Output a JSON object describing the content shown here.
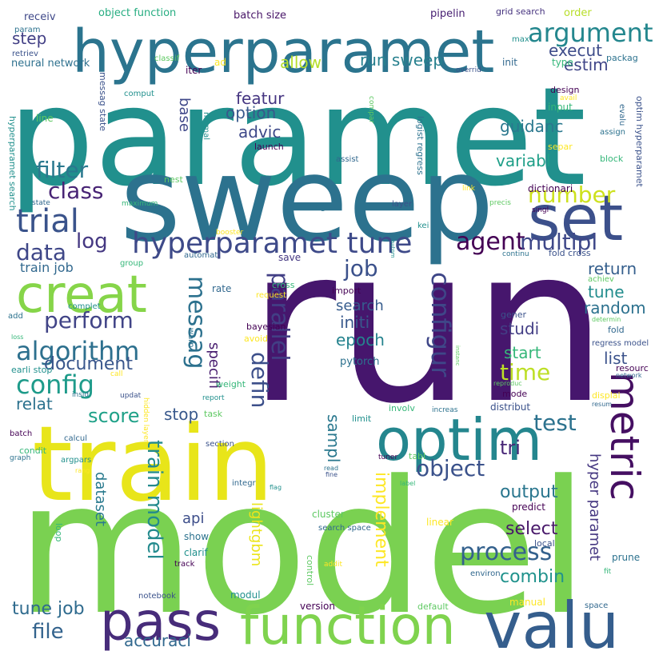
{
  "wordcloud": {
    "words": [
      {
        "text": "run",
        "color": "#46166d"
      },
      {
        "text": "model",
        "color": "#7ad151"
      },
      {
        "text": "paramet",
        "color": "#21908d"
      },
      {
        "text": "sweep",
        "color": "#2c728e"
      },
      {
        "text": "train",
        "color": "#e8e51a"
      },
      {
        "text": "hyperparamet",
        "color": "#2b748e"
      },
      {
        "text": "valu",
        "color": "#355e8d"
      },
      {
        "text": "function",
        "color": "#7fd34e"
      },
      {
        "text": "pass",
        "color": "#472c7a"
      },
      {
        "text": "optim",
        "color": "#24868e"
      },
      {
        "text": "set",
        "color": "#3c508b"
      },
      {
        "text": "creat",
        "color": "#86d549"
      },
      {
        "text": "metric",
        "color": "#450f62"
      },
      {
        "text": "trial",
        "color": "#3a538b"
      },
      {
        "text": "hyperparamet tune",
        "color": "#3e4a89"
      },
      {
        "text": "argument",
        "color": "#24878e"
      },
      {
        "text": "algorithm",
        "color": "#2d708e"
      },
      {
        "text": "messag",
        "color": "#2c718e"
      },
      {
        "text": "config",
        "color": "#1e9b8a"
      },
      {
        "text": "configur",
        "color": "#3f4788"
      },
      {
        "text": "parallel",
        "color": "#423f85"
      },
      {
        "text": "agent",
        "color": "#440154"
      },
      {
        "text": "multipl",
        "color": "#3f4889"
      },
      {
        "text": "data",
        "color": "#3f4788"
      },
      {
        "text": "filter",
        "color": "#2a788e"
      },
      {
        "text": "class",
        "color": "#482475"
      },
      {
        "text": "perform",
        "color": "#414487"
      },
      {
        "text": "process",
        "color": "#34618d"
      },
      {
        "text": "job",
        "color": "#3b518b"
      },
      {
        "text": "number",
        "color": "#cde11d"
      },
      {
        "text": "log",
        "color": "#453882"
      },
      {
        "text": "test",
        "color": "#2c728e"
      },
      {
        "text": "time",
        "color": "#bddf26"
      },
      {
        "text": "defin",
        "color": "#3c4f8a"
      },
      {
        "text": "score",
        "color": "#1fa188"
      },
      {
        "text": "train model",
        "color": "#238a8d"
      },
      {
        "text": "object",
        "color": "#3b528b"
      },
      {
        "text": "file",
        "color": "#33638d"
      },
      {
        "text": "tune job",
        "color": "#2f6b8e"
      },
      {
        "text": "accuraci",
        "color": "#31688e"
      },
      {
        "text": "implement",
        "color": "#fde725"
      },
      {
        "text": "tri",
        "color": "#482677"
      },
      {
        "text": "output",
        "color": "#2a768e"
      },
      {
        "text": "select",
        "color": "#48186a"
      },
      {
        "text": "combin",
        "color": "#20928c"
      },
      {
        "text": "document",
        "color": "#39568c"
      },
      {
        "text": "relat",
        "color": "#2c728e"
      },
      {
        "text": "stop",
        "color": "#38588c"
      },
      {
        "text": "execut",
        "color": "#3e4c8a"
      },
      {
        "text": "allow",
        "color": "#b5de2b"
      },
      {
        "text": "run sweep",
        "color": "#27808e"
      },
      {
        "text": "step",
        "color": "#423f85"
      },
      {
        "text": "estim",
        "color": "#404688"
      },
      {
        "text": "featur",
        "color": "#453581"
      },
      {
        "text": "option",
        "color": "#38588c"
      },
      {
        "text": "advic",
        "color": "#3e4989"
      },
      {
        "text": "guidanc",
        "color": "#2a788e"
      },
      {
        "text": "variabl",
        "color": "#1f9f88"
      },
      {
        "text": "random",
        "color": "#2c718e"
      },
      {
        "text": "tune",
        "color": "#228d8d"
      },
      {
        "text": "return",
        "color": "#355f8d"
      },
      {
        "text": "search",
        "color": "#365c8d"
      },
      {
        "text": "initi",
        "color": "#38588c"
      },
      {
        "text": "epoch",
        "color": "#25838e"
      },
      {
        "text": "studi",
        "color": "#433e85"
      },
      {
        "text": "start",
        "color": "#35b779"
      },
      {
        "text": "list",
        "color": "#3b528b"
      },
      {
        "text": "specifi",
        "color": "#481d6f"
      },
      {
        "text": "sampl",
        "color": "#2a788e"
      },
      {
        "text": "dataset",
        "color": "#297a8e"
      },
      {
        "text": "api",
        "color": "#3d4e8a"
      },
      {
        "text": "lightgbm",
        "color": "#ece51b"
      },
      {
        "text": "hyper paramet",
        "color": "#453781"
      },
      {
        "text": "base",
        "color": "#3f4889"
      },
      {
        "text": "neural network",
        "color": "#2d708e"
      },
      {
        "text": "batch size",
        "color": "#481668"
      },
      {
        "text": "object function",
        "color": "#26ad81"
      },
      {
        "text": "receiv",
        "color": "#3f4889"
      },
      {
        "text": "pipelin",
        "color": "#482173"
      },
      {
        "text": "grid search",
        "color": "#46337f"
      },
      {
        "text": "order",
        "color": "#b8de29"
      },
      {
        "text": "train job",
        "color": "#31688e"
      },
      {
        "text": "save",
        "color": "#453882"
      },
      {
        "text": "pytorch",
        "color": "#2c718e"
      }
    ],
    "small_words": [
      "param",
      "retriev",
      "max",
      "classif",
      "iter",
      "ad",
      "init",
      "type",
      "packag",
      "overrid",
      "comput",
      "compar",
      "design",
      "avail",
      "evalu",
      "input",
      "assign",
      "messag state",
      "normal",
      "line",
      "launch",
      "separ",
      "assist",
      "block",
      "logist regress",
      "optim hyperparamet",
      "hyperparamet search",
      "nest",
      "dictionari",
      "link",
      "state",
      "maximum",
      "imag",
      "layer",
      "kei",
      "precis",
      "singl",
      "booster",
      "automat",
      "group",
      "continu",
      "fold cross",
      "autom",
      "achiev",
      "import",
      "request",
      "rate",
      "cross",
      "add",
      "gener",
      "complet",
      "determin",
      "bayesian",
      "avoid",
      "fold",
      "loss",
      "warn",
      "regress model",
      "earli stop",
      "instanc",
      "resourc",
      "call",
      "network",
      "weight",
      "insid",
      "updat",
      "report",
      "reproduc",
      "mode",
      "displai",
      "resum",
      "involv",
      "increas",
      "distribut",
      "limit",
      "task",
      "batch",
      "hidden layer",
      "calcul",
      "condit",
      "graph",
      "section",
      "argpars",
      "tabl",
      "tuner",
      "rang",
      "integr",
      "label",
      "read",
      "fine",
      "flag",
      "cluster",
      "predict",
      "linear",
      "search space",
      "loop",
      "show",
      "local",
      "clarif",
      "control",
      "track",
      "addit",
      "environ",
      "fit",
      "prune",
      "notebook",
      "modul",
      "default",
      "version",
      "manual",
      "space"
    ]
  }
}
